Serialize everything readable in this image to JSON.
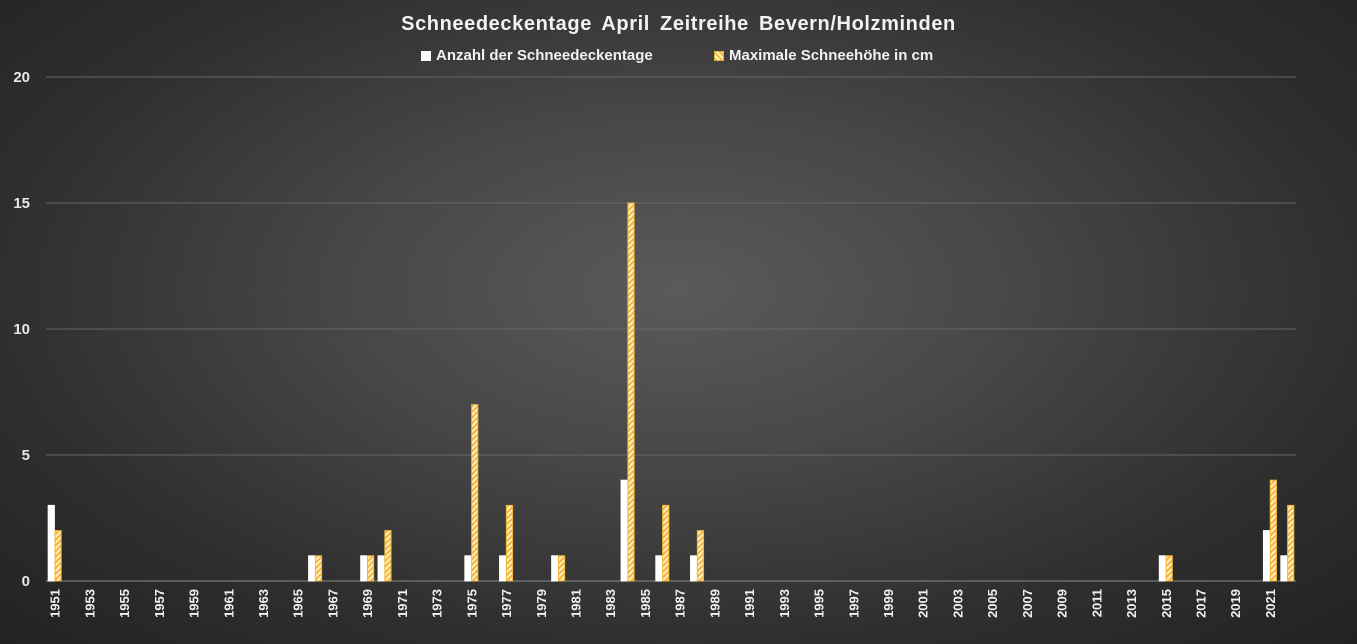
{
  "chart_data": {
    "type": "bar",
    "title": "Schneedeckentage  April Zeitreihe  Bevern/Holzminden",
    "xlabel": "",
    "ylabel": "",
    "ylim": [
      0,
      20
    ],
    "yticks": [
      0,
      5,
      10,
      15,
      20
    ],
    "grid": true,
    "legend_position": "top",
    "categories": [
      1951,
      1952,
      1953,
      1954,
      1955,
      1956,
      1957,
      1958,
      1959,
      1960,
      1961,
      1962,
      1963,
      1964,
      1965,
      1966,
      1967,
      1968,
      1969,
      1970,
      1971,
      1972,
      1973,
      1974,
      1975,
      1976,
      1977,
      1978,
      1979,
      1980,
      1981,
      1982,
      1983,
      1984,
      1985,
      1986,
      1987,
      1988,
      1989,
      1990,
      1991,
      1992,
      1993,
      1994,
      1995,
      1996,
      1997,
      1998,
      1999,
      2000,
      2001,
      2002,
      2003,
      2004,
      2005,
      2006,
      2007,
      2008,
      2009,
      2010,
      2011,
      2012,
      2013,
      2014,
      2015,
      2016,
      2017,
      2018,
      2019,
      2020,
      2021,
      2022
    ],
    "xtick_labels": [
      "1951",
      "1953",
      "1955",
      "1957",
      "1959",
      "1961",
      "1963",
      "1965",
      "1967",
      "1969",
      "1971",
      "1973",
      "1975",
      "1977",
      "1979",
      "1981",
      "1983",
      "1985",
      "1987",
      "1989",
      "1991",
      "1993",
      "1995",
      "1997",
      "1999",
      "2001",
      "2003",
      "2005",
      "2007",
      "2009",
      "2011",
      "2013",
      "2015",
      "2017",
      "2019",
      "2021"
    ],
    "series": [
      {
        "name": "Anzahl der Schneedeckentage",
        "color": "#ffffff",
        "values": [
          3,
          0,
          0,
          0,
          0,
          0,
          0,
          0,
          0,
          0,
          0,
          0,
          0,
          0,
          0,
          1,
          0,
          0,
          1,
          1,
          0,
          0,
          0,
          0,
          1,
          0,
          1,
          0,
          0,
          1,
          0,
          0,
          0,
          4,
          0,
          1,
          0,
          1,
          0,
          0,
          0,
          0,
          0,
          0,
          0,
          0,
          0,
          0,
          0,
          0,
          0,
          0,
          0,
          0,
          0,
          0,
          0,
          0,
          0,
          0,
          0,
          0,
          0,
          0,
          1,
          0,
          0,
          0,
          0,
          0,
          2,
          1
        ]
      },
      {
        "name": "Maximale Schneehöhe in cm",
        "color": "#f3b53a",
        "values": [
          2,
          0,
          0,
          0,
          0,
          0,
          0,
          0,
          0,
          0,
          0,
          0,
          0,
          0,
          0,
          1,
          0,
          0,
          1,
          2,
          0,
          0,
          0,
          0,
          7,
          0,
          3,
          0,
          0,
          1,
          0,
          0,
          0,
          15,
          0,
          3,
          0,
          2,
          0,
          0,
          0,
          0,
          0,
          0,
          0,
          0,
          0,
          0,
          0,
          0,
          0,
          0,
          0,
          0,
          0,
          0,
          0,
          0,
          0,
          0,
          0,
          0,
          0,
          0,
          1,
          0,
          0,
          0,
          0,
          0,
          4,
          3
        ]
      }
    ]
  }
}
